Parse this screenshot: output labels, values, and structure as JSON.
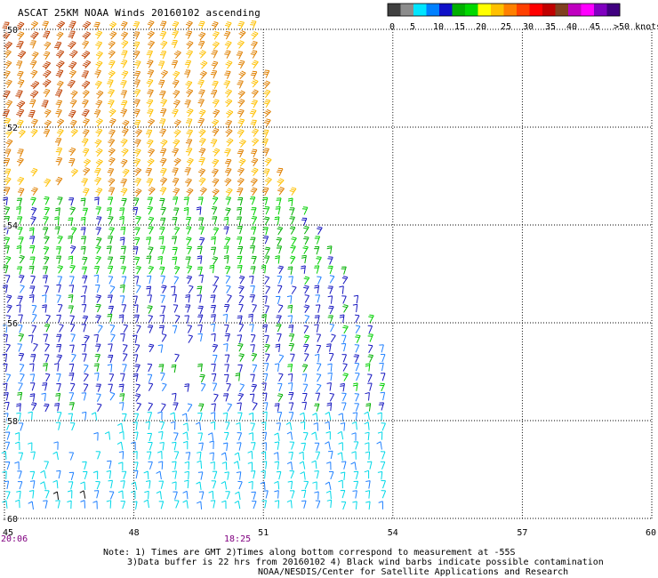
{
  "title": "ASCAT 25KM NOAA Winds 20160102 ascending",
  "legend": {
    "colors": [
      "#404040",
      "#8c8c8c",
      "#00e5ff",
      "#0080ff",
      "#1010c8",
      "#00b000",
      "#00d800",
      "#ffff00",
      "#ffc000",
      "#ff8000",
      "#ff4000",
      "#ff0000",
      "#c00000",
      "#804020",
      "#c000c0",
      "#ff00ff",
      "#8000c0",
      "#400080"
    ],
    "labels": [
      "0",
      "5",
      "10",
      "15",
      "20",
      "25",
      "30",
      "35",
      "40",
      "45",
      ">50 knots"
    ]
  },
  "chart_data": {
    "type": "wind-barb map",
    "title": "ASCAT 25KM NOAA Winds 20160102 ascending",
    "x_ticks": [
      "45",
      "48",
      "51",
      "54",
      "57",
      "60"
    ],
    "y_ticks": [
      "-50",
      "-52",
      "-54",
      "-56",
      "-58",
      "-60"
    ],
    "xlim": [
      45,
      60
    ],
    "ylim": [
      -60,
      -50
    ],
    "grid": true,
    "time_labels": [
      {
        "text": "20:06",
        "lon": 45
      },
      {
        "text": "18:25",
        "lon": 50.4
      }
    ],
    "speed_zones": [
      {
        "lat_range": [
          -53.5,
          -50
        ],
        "speed_knots": 30,
        "note": "orange/yellow, far west very strong"
      },
      {
        "lat_range": [
          -55.2,
          -53.5
        ],
        "speed_knots": 18,
        "note": "green"
      },
      {
        "lat_range": [
          -58.0,
          -55.2
        ],
        "speed_knots": 14,
        "note": "blue"
      },
      {
        "lat_range": [
          -60,
          -58.0
        ],
        "speed_knots": 9,
        "note": "cyan"
      }
    ]
  },
  "notes": {
    "line1": "Note: 1) Times are GMT 2)Times along bottom correspond to measurement at -55S",
    "line2": "3)Data buffer is 22 hrs from 20160102 4) Black wind barbs indicate possible contamination",
    "line3": "NOAA/NESDIS/Center for Satellite Applications and Research"
  }
}
